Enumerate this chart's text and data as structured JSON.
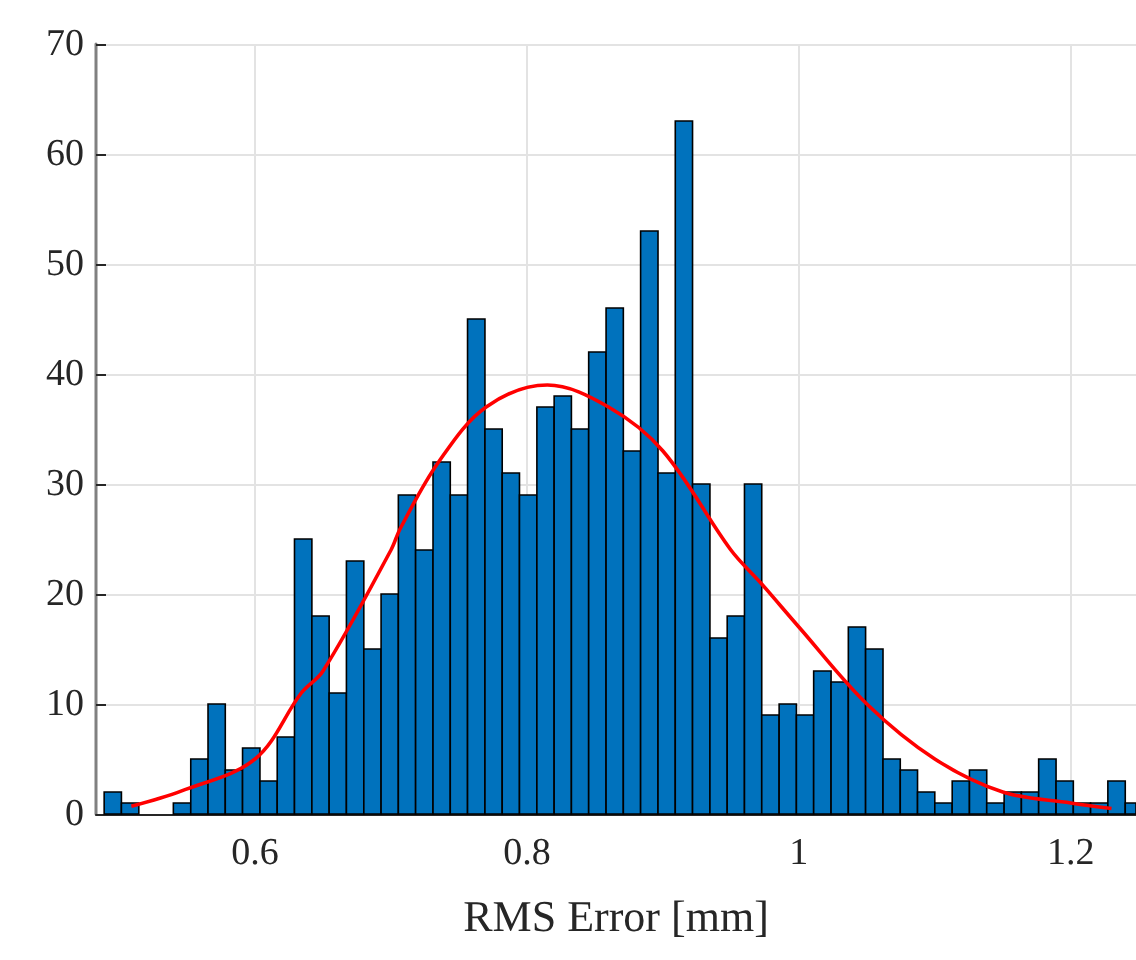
{
  "chart_data": {
    "type": "histogram",
    "xlabel": "RMS Error [mm]",
    "bins": [
      0.489,
      0.5017,
      0.5145,
      0.5399,
      0.5527,
      0.5654,
      0.5781,
      0.5908,
      0.6036,
      0.6163,
      0.629,
      0.6418,
      0.6545,
      0.6672,
      0.68,
      0.6927,
      0.7054,
      0.7181,
      0.7309,
      0.7436,
      0.7563,
      0.7691,
      0.7818,
      0.7945,
      0.8073,
      0.82,
      0.8327,
      0.8454,
      0.8582,
      0.8709,
      0.8836,
      0.8964,
      0.9091,
      0.9218,
      0.9346,
      0.9473,
      0.96,
      0.9727,
      0.9855,
      0.9982,
      1.0109,
      1.0237,
      1.0364,
      1.0491,
      1.0619,
      1.0746,
      1.0873,
      1.1,
      1.1128,
      1.1255,
      1.1382,
      1.151,
      1.1637,
      1.1764,
      1.1892,
      1.2019,
      1.2146,
      1.2273,
      1.2401,
      1.248
    ],
    "values": [
      2,
      1,
      0,
      1,
      5,
      10,
      4,
      6,
      3,
      7,
      25,
      18,
      11,
      23,
      15,
      20,
      29,
      24,
      32,
      29,
      45,
      35,
      31,
      29,
      37,
      38,
      35,
      42,
      46,
      33,
      53,
      31,
      63,
      30,
      16,
      18,
      30,
      9,
      10,
      9,
      13,
      12,
      17,
      15,
      5,
      4,
      2,
      1,
      3,
      4,
      1,
      2,
      2,
      5,
      3,
      1,
      1,
      3,
      1
    ],
    "color": "#0072bd",
    "series": [
      {
        "type": "line",
        "color": "#ff0000",
        "x": [
          0.509,
          0.546,
          0.6,
          0.634,
          0.65,
          0.7,
          0.707,
          0.735,
          0.77,
          0.815,
          0.86,
          0.9,
          0.95,
          0.972,
          1.0,
          1.05,
          1.1,
          1.15,
          1.2,
          1.23
        ],
        "values": [
          0.7,
          2.1,
          5,
          11,
          13,
          24,
          26,
          32,
          37,
          39,
          37,
          33,
          24,
          21,
          17,
          10,
          5,
          2,
          1,
          0.5
        ]
      }
    ],
    "xlim": [
      0.483,
      1.248
    ],
    "xticks": [
      0.6,
      0.8,
      1,
      1.2
    ],
    "ylim": [
      0,
      70
    ],
    "yticks": [
      0,
      10,
      20,
      30,
      40,
      50,
      60,
      70
    ],
    "grid": true,
    "marker": "none",
    "line_style": "solid"
  }
}
